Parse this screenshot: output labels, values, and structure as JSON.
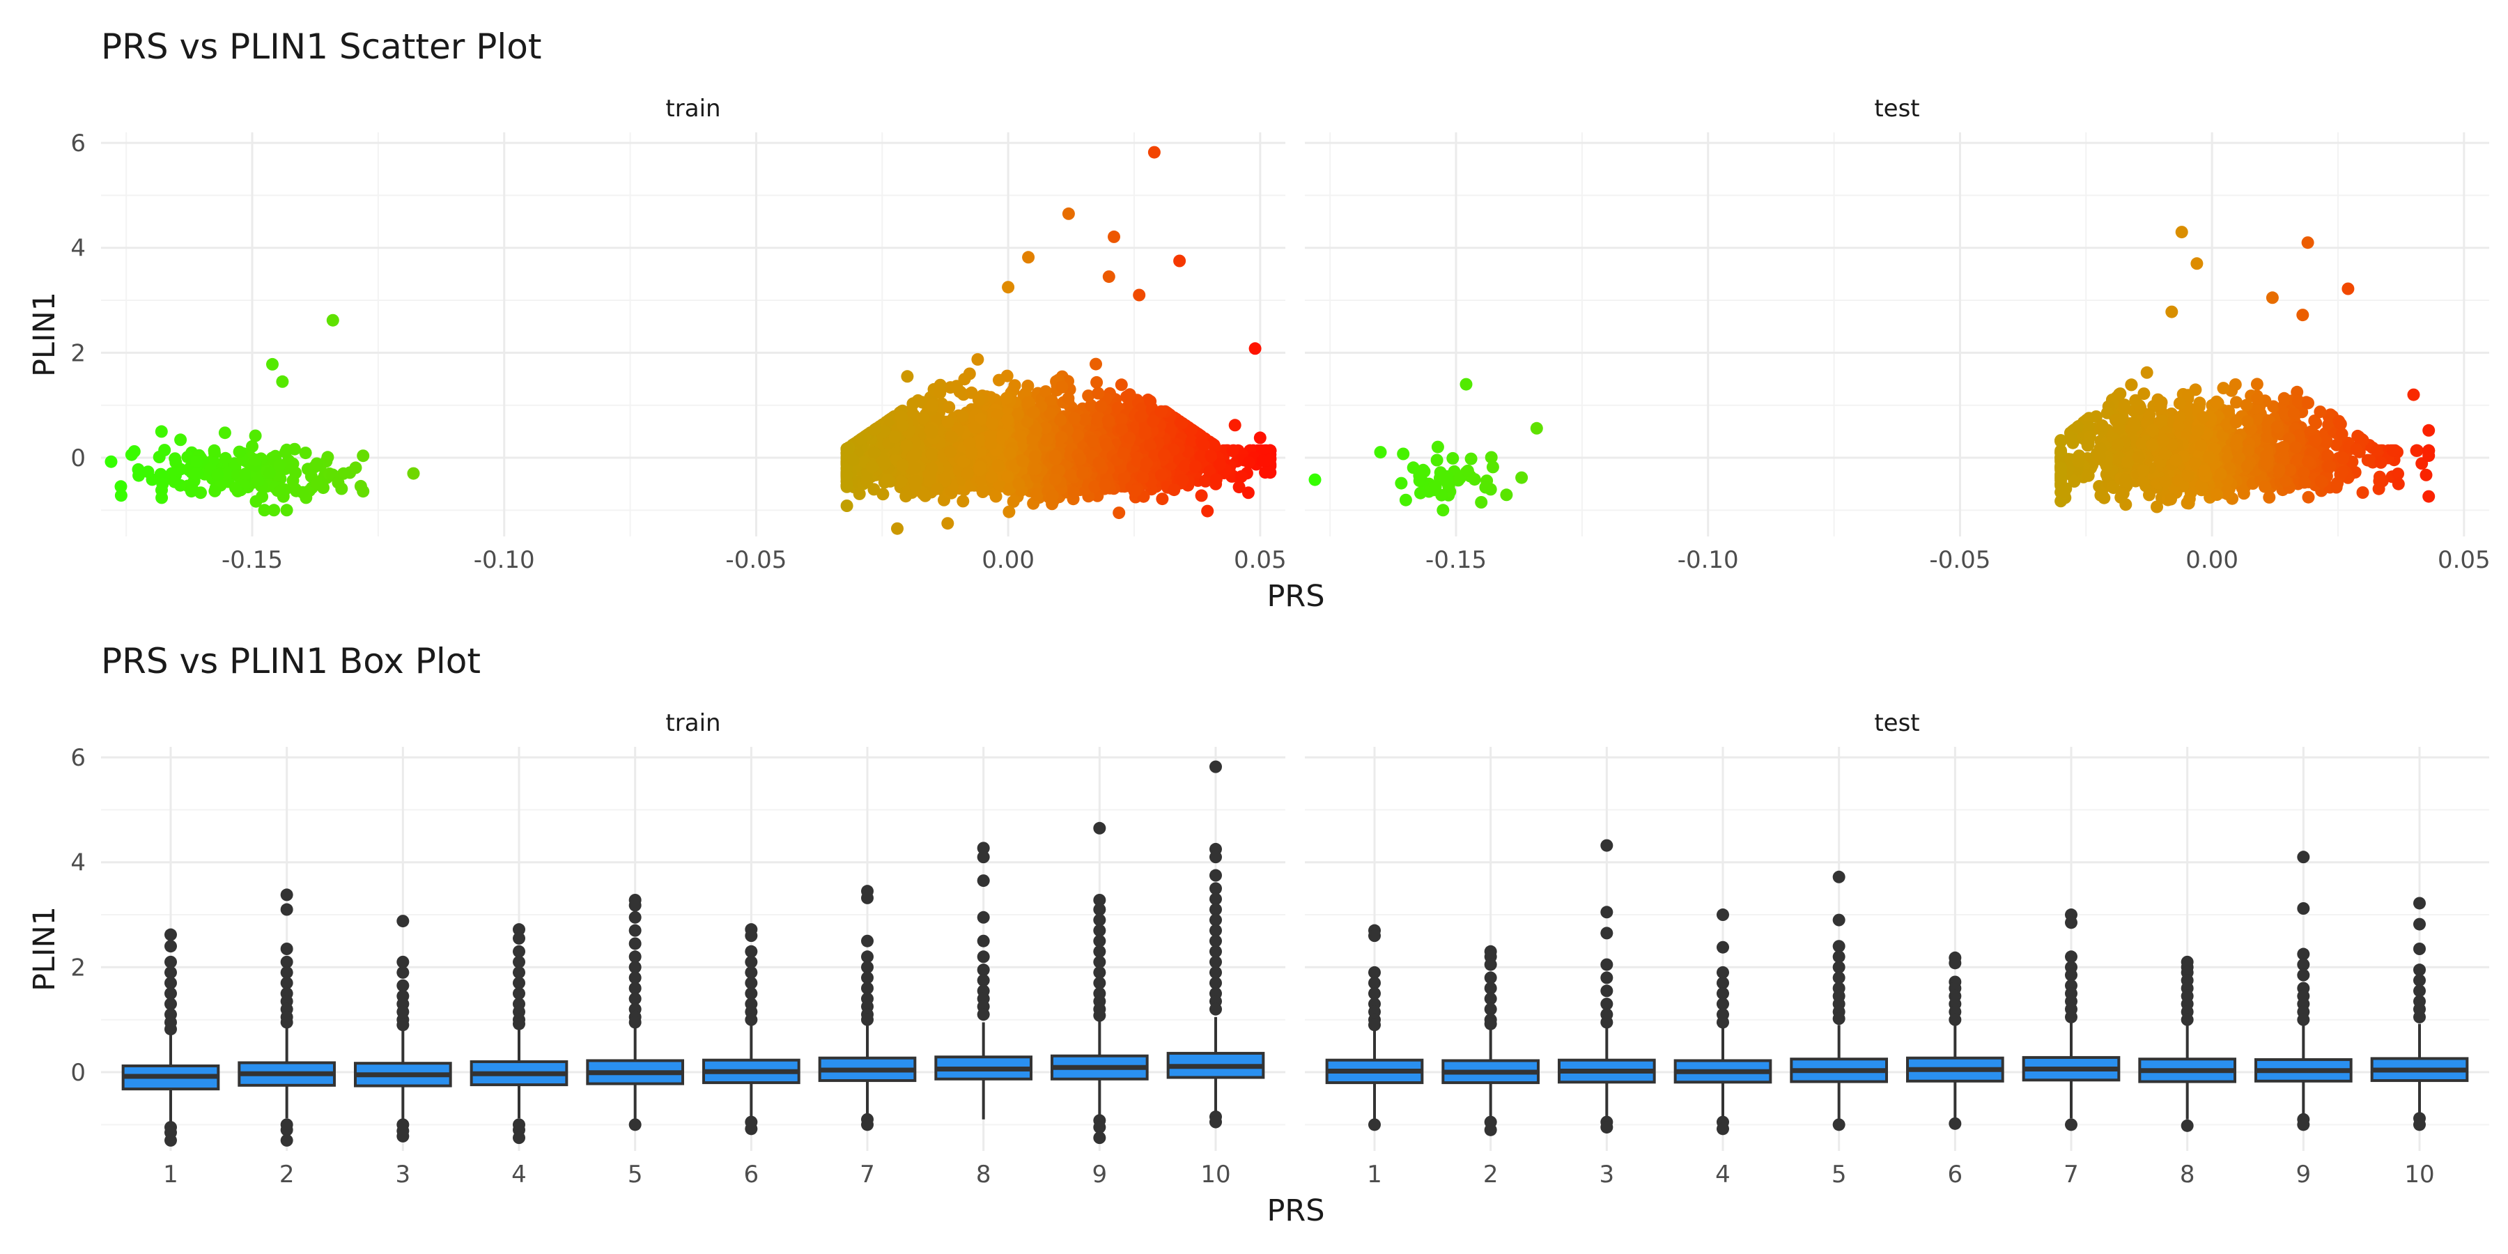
{
  "chart_data": [
    {
      "type": "scatter",
      "title": "PRS vs PLIN1 Scatter Plot",
      "xlabel": "PRS",
      "ylabel": "PLIN1",
      "xlim": [
        -0.18,
        0.055
      ],
      "ylim": [
        -1.5,
        6.2
      ],
      "x_ticks": [
        -0.15,
        -0.1,
        -0.05,
        0.0,
        0.05
      ],
      "x_tick_labels": [
        "-0.15",
        "-0.10",
        "-0.05",
        "0.00",
        "0.05"
      ],
      "y_ticks": [
        0,
        2,
        4,
        6
      ],
      "y_tick_labels": [
        "0",
        "2",
        "4",
        "6"
      ],
      "grid": true,
      "color_scale": {
        "low_value": -0.18,
        "low_color": "#33ff00",
        "mid_value": 0.0,
        "mid_color": "#e08a00",
        "high_value": 0.05,
        "high_color": "#ff1100"
      },
      "panels": [
        {
          "strip": "train",
          "clusters": [
            {
              "x_range": [
                -0.178,
                -0.128
              ],
              "x_center": -0.153,
              "y_center": -0.3,
              "count": 180
            },
            {
              "x_range": [
                -0.032,
                0.052
              ],
              "x_center": 0.005,
              "y_center": 0.05,
              "count": 3000
            }
          ],
          "points": [
            [
              -0.134,
              2.62
            ],
            [
              -0.146,
              1.78
            ],
            [
              -0.144,
              1.45
            ],
            [
              -0.118,
              -0.3
            ],
            [
              -0.168,
              0.5
            ],
            [
              -0.176,
              -0.72
            ],
            [
              0.029,
              5.82
            ],
            [
              0.012,
              4.65
            ],
            [
              0.021,
              4.21
            ],
            [
              0.034,
              3.75
            ],
            [
              0.004,
              3.82
            ],
            [
              0.02,
              3.45
            ],
            [
              0.026,
              3.1
            ],
            [
              0.049,
              2.08
            ],
            [
              0.0,
              3.25
            ],
            [
              -0.02,
              1.55
            ],
            [
              0.05,
              0.38
            ],
            [
              0.051,
              -0.28
            ],
            [
              -0.022,
              -1.35
            ],
            [
              -0.012,
              -1.25
            ],
            [
              0.045,
              0.62
            ],
            [
              -0.028,
              -0.45
            ]
          ]
        },
        {
          "strip": "test",
          "clusters": [
            {
              "x_range": [
                -0.165,
                -0.14
              ],
              "x_center": -0.153,
              "y_center": -0.35,
              "count": 45
            },
            {
              "x_range": [
                -0.03,
                0.043
              ],
              "x_center": 0.0,
              "y_center": 0.0,
              "count": 1300
            }
          ],
          "points": [
            [
              -0.178,
              -0.42
            ],
            [
              -0.148,
              1.4
            ],
            [
              -0.134,
              0.56
            ],
            [
              -0.137,
              -0.38
            ],
            [
              -0.145,
              -0.85
            ],
            [
              0.019,
              4.1
            ],
            [
              -0.006,
              4.3
            ],
            [
              -0.003,
              3.7
            ],
            [
              0.027,
              3.22
            ],
            [
              0.012,
              3.05
            ],
            [
              0.018,
              2.72
            ],
            [
              -0.008,
              2.78
            ],
            [
              0.04,
              1.2
            ],
            [
              0.043,
              0.52
            ],
            [
              -0.028,
              0.35
            ],
            [
              0.037,
              -0.5
            ]
          ]
        }
      ]
    },
    {
      "type": "box",
      "title": "PRS vs PLIN1 Box Plot",
      "xlabel": "PRS",
      "ylabel": "PLIN1",
      "categories": [
        "1",
        "2",
        "3",
        "4",
        "5",
        "6",
        "7",
        "8",
        "9",
        "10"
      ],
      "ylim": [
        -1.5,
        6.2
      ],
      "y_ticks": [
        0,
        2,
        4,
        6
      ],
      "y_tick_labels": [
        "0",
        "2",
        "4",
        "6"
      ],
      "box_color": "#2a90f0",
      "grid": true,
      "panels": [
        {
          "strip": "train",
          "boxes": [
            {
              "q1": -0.32,
              "median": -0.08,
              "q3": 0.12,
              "lower": -0.95,
              "upper": 0.75,
              "outliers": [
                2.62,
                2.4,
                2.1,
                1.9,
                1.7,
                1.5,
                1.3,
                1.1,
                0.95,
                0.82,
                -1.05,
                -1.15,
                -1.3
              ]
            },
            {
              "q1": -0.25,
              "median": -0.03,
              "q3": 0.18,
              "lower": -0.88,
              "upper": 0.85,
              "outliers": [
                3.38,
                3.1,
                2.35,
                2.1,
                1.9,
                1.7,
                1.5,
                1.35,
                1.2,
                1.05,
                0.95,
                -1.0,
                -1.1,
                -1.3
              ]
            },
            {
              "q1": -0.26,
              "median": -0.05,
              "q3": 0.17,
              "lower": -0.9,
              "upper": 0.82,
              "outliers": [
                2.88,
                2.1,
                1.9,
                1.65,
                1.45,
                1.3,
                1.15,
                1.0,
                0.9,
                -1.0,
                -1.12,
                -1.22
              ]
            },
            {
              "q1": -0.24,
              "median": -0.03,
              "q3": 0.2,
              "lower": -0.88,
              "upper": 0.85,
              "outliers": [
                2.72,
                2.55,
                2.3,
                2.1,
                1.9,
                1.7,
                1.5,
                1.3,
                1.15,
                1.0,
                0.92,
                -1.0,
                -1.1,
                -1.25
              ]
            },
            {
              "q1": -0.22,
              "median": -0.01,
              "q3": 0.22,
              "lower": -0.9,
              "upper": 0.9,
              "outliers": [
                3.28,
                3.18,
                2.95,
                2.7,
                2.45,
                2.2,
                2.0,
                1.8,
                1.6,
                1.4,
                1.2,
                1.05,
                0.95,
                -1.0
              ]
            },
            {
              "q1": -0.2,
              "median": 0.01,
              "q3": 0.23,
              "lower": -0.88,
              "upper": 0.9,
              "outliers": [
                2.72,
                2.6,
                2.3,
                2.1,
                1.9,
                1.7,
                1.5,
                1.3,
                1.15,
                1.0,
                -0.95,
                -1.08
              ]
            },
            {
              "q1": -0.16,
              "median": 0.04,
              "q3": 0.27,
              "lower": -0.85,
              "upper": 0.92,
              "outliers": [
                3.45,
                3.32,
                2.5,
                2.2,
                2.0,
                1.8,
                1.6,
                1.4,
                1.25,
                1.1,
                1.0,
                -0.9,
                -1.0
              ]
            },
            {
              "q1": -0.13,
              "median": 0.06,
              "q3": 0.29,
              "lower": -0.9,
              "upper": 0.95,
              "outliers": [
                4.27,
                4.1,
                3.65,
                2.95,
                2.5,
                2.2,
                1.95,
                1.75,
                1.55,
                1.4,
                1.25,
                1.1
              ]
            },
            {
              "q1": -0.13,
              "median": 0.09,
              "q3": 0.31,
              "lower": -0.85,
              "upper": 1.0,
              "outliers": [
                4.65,
                3.28,
                3.1,
                2.9,
                2.7,
                2.5,
                2.3,
                2.1,
                1.9,
                1.7,
                1.5,
                1.35,
                1.2,
                1.08,
                -0.92,
                -1.05,
                -1.25
              ]
            },
            {
              "q1": -0.1,
              "median": 0.11,
              "q3": 0.36,
              "lower": -0.82,
              "upper": 1.05,
              "outliers": [
                5.82,
                4.25,
                4.1,
                3.75,
                3.5,
                3.3,
                3.1,
                2.9,
                2.7,
                2.5,
                2.3,
                2.1,
                1.9,
                1.7,
                1.5,
                1.35,
                1.2,
                -0.85,
                -0.95
              ]
            }
          ]
        },
        {
          "strip": "test",
          "boxes": [
            {
              "q1": -0.2,
              "median": 0.02,
              "q3": 0.23,
              "lower": -0.9,
              "upper": 0.85,
              "outliers": [
                2.7,
                2.6,
                1.9,
                1.7,
                1.5,
                1.3,
                1.15,
                1.0,
                0.9,
                -1.0
              ]
            },
            {
              "q1": -0.2,
              "median": 0.0,
              "q3": 0.22,
              "lower": -0.88,
              "upper": 0.85,
              "outliers": [
                2.3,
                2.2,
                2.05,
                1.8,
                1.6,
                1.4,
                1.2,
                1.0,
                0.92,
                -0.95,
                -1.1
              ]
            },
            {
              "q1": -0.19,
              "median": 0.02,
              "q3": 0.23,
              "lower": -0.9,
              "upper": 0.88,
              "outliers": [
                4.32,
                3.05,
                2.65,
                2.05,
                1.8,
                1.55,
                1.3,
                1.1,
                0.95,
                -0.95,
                -1.05
              ]
            },
            {
              "q1": -0.19,
              "median": 0.01,
              "q3": 0.22,
              "lower": -0.88,
              "upper": 0.86,
              "outliers": [
                3.0,
                2.38,
                1.9,
                1.7,
                1.5,
                1.3,
                1.1,
                0.95,
                -0.95,
                -1.08
              ]
            },
            {
              "q1": -0.18,
              "median": 0.03,
              "q3": 0.25,
              "lower": -0.9,
              "upper": 0.9,
              "outliers": [
                3.72,
                2.9,
                2.4,
                2.2,
                2.0,
                1.8,
                1.6,
                1.45,
                1.3,
                1.15,
                1.02,
                -1.0
              ]
            },
            {
              "q1": -0.17,
              "median": 0.05,
              "q3": 0.27,
              "lower": -0.9,
              "upper": 0.92,
              "outliers": [
                2.18,
                2.08,
                1.72,
                1.6,
                1.45,
                1.3,
                1.15,
                1.0,
                -0.98
              ]
            },
            {
              "q1": -0.15,
              "median": 0.06,
              "q3": 0.28,
              "lower": -0.88,
              "upper": 0.95,
              "outliers": [
                3.0,
                2.85,
                2.2,
                2.0,
                1.85,
                1.65,
                1.5,
                1.35,
                1.2,
                1.05,
                -1.0
              ]
            },
            {
              "q1": -0.18,
              "median": 0.03,
              "q3": 0.25,
              "lower": -0.9,
              "upper": 0.9,
              "outliers": [
                2.1,
                2.0,
                1.9,
                1.75,
                1.6,
                1.45,
                1.3,
                1.15,
                1.0,
                -1.02
              ]
            },
            {
              "q1": -0.17,
              "median": 0.03,
              "q3": 0.24,
              "lower": -0.88,
              "upper": 0.9,
              "outliers": [
                4.1,
                3.12,
                2.25,
                2.05,
                1.85,
                1.6,
                1.45,
                1.3,
                1.15,
                1.0,
                -0.9,
                -1.0
              ]
            },
            {
              "q1": -0.16,
              "median": 0.04,
              "q3": 0.26,
              "lower": -0.88,
              "upper": 0.92,
              "outliers": [
                3.22,
                2.82,
                2.35,
                1.95,
                1.75,
                1.55,
                1.35,
                1.2,
                1.05,
                -0.88,
                -1.0
              ]
            }
          ]
        }
      ]
    }
  ]
}
